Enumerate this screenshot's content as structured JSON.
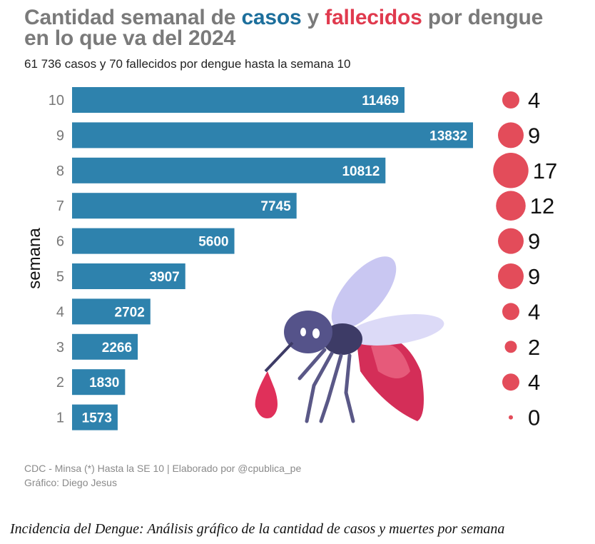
{
  "title": {
    "part1": "Cantidad semanal de ",
    "casos": "casos",
    "part2": " y ",
    "fallecidos": "fallecidos",
    "part3": " por dengue",
    "line2": "en lo que va del 2024"
  },
  "subtitle": "61 736 casos y 70 fallecidos por dengue hasta la semana 10",
  "source": {
    "line1": "CDC - Minsa (*) Hasta la SE 10 | Elaborado por @cpublica_pe",
    "line2": "Gráfico: Diego Jesus"
  },
  "caption": "Incidencia del Dengue: Análisis gráfico de la cantidad de casos y muertes por semana",
  "colors": {
    "casos": "#2e82ad",
    "fallecidos": "#e34c5a",
    "title": "#7a7a7a"
  },
  "chart_data": {
    "type": "bar",
    "orientation": "horizontal",
    "ylabel": "semana",
    "categories": [
      "10",
      "9",
      "8",
      "7",
      "6",
      "5",
      "4",
      "3",
      "2",
      "1"
    ],
    "series": [
      {
        "name": "casos",
        "values": [
          11469,
          13832,
          10812,
          7745,
          5600,
          3907,
          2702,
          2266,
          1830,
          1573
        ],
        "mark": "bar"
      },
      {
        "name": "fallecidos",
        "values": [
          4,
          9,
          17,
          12,
          9,
          9,
          4,
          2,
          4,
          0
        ],
        "mark": "bubble"
      }
    ],
    "data_labels": true,
    "grid": false,
    "illustration": "mosquito-icon"
  }
}
